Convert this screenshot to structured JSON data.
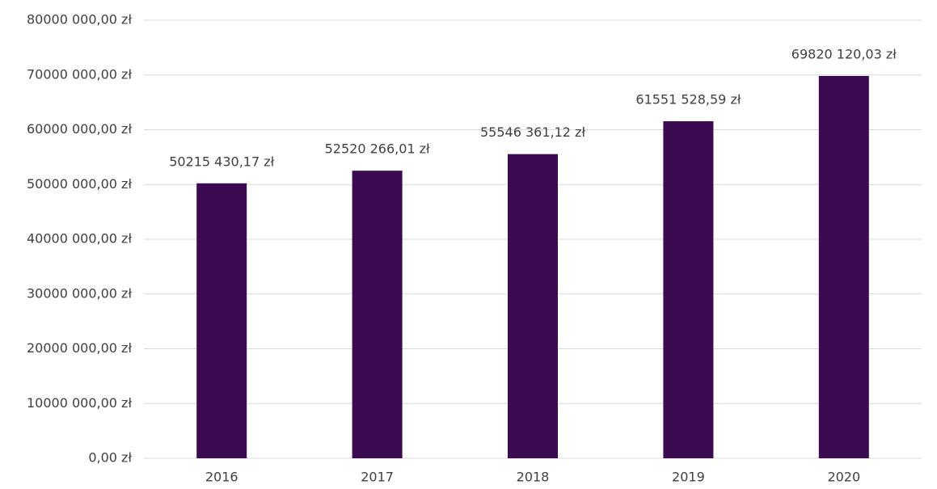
{
  "chart_data": {
    "type": "bar",
    "categories": [
      "2016",
      "2017",
      "2018",
      "2019",
      "2020"
    ],
    "values": [
      50215430.17,
      52520266.01,
      55546361.12,
      61551528.59,
      69820120.03
    ],
    "value_labels": [
      "50215 430,17 zł",
      "52520 266,01 zł",
      "55546 361,12 zł",
      "61551 528,59 zł",
      "69820 120,03 zł"
    ],
    "color": "#3b0a50",
    "ylim": [
      0,
      80000000
    ],
    "yticks": [
      {
        "value": 0,
        "label": "0,00 zł"
      },
      {
        "value": 10000000,
        "label": "10000 000,00 zł"
      },
      {
        "value": 20000000,
        "label": "20000 000,00 zł"
      },
      {
        "value": 30000000,
        "label": "30000 000,00 zł"
      },
      {
        "value": 40000000,
        "label": "40000 000,00 zł"
      },
      {
        "value": 50000000,
        "label": "50000 000,00 zł"
      },
      {
        "value": 60000000,
        "label": "60000 000,00 zł"
      },
      {
        "value": 70000000,
        "label": "70000 000,00 zł"
      },
      {
        "value": 80000000,
        "label": "80000 000,00 zł"
      }
    ],
    "grid": true
  }
}
